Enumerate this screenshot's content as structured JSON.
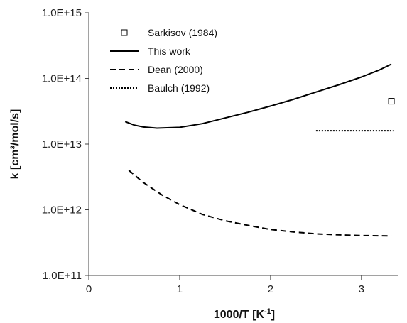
{
  "chart_data": {
    "type": "line",
    "xlabel": "1000/T [K",
    "xlabel_sup": "-1",
    "xlabel_suffix": "]",
    "ylabel": "k [cm³/mol/s]",
    "xlim": [
      0,
      3.4
    ],
    "ylim": [
      100000000000.0,
      1000000000000000.0
    ],
    "yscale": "log",
    "x_ticks": [
      {
        "value": 0,
        "label": "0"
      },
      {
        "value": 1,
        "label": "1"
      },
      {
        "value": 2,
        "label": "2"
      },
      {
        "value": 3,
        "label": "3"
      }
    ],
    "y_ticks": [
      {
        "value": 100000000000.0,
        "label": "1.0E+11"
      },
      {
        "value": 1000000000000.0,
        "label": "1.0E+12"
      },
      {
        "value": 10000000000000.0,
        "label": "1.0E+13"
      },
      {
        "value": 100000000000000.0,
        "label": "1.0E+14"
      },
      {
        "value": 1000000000000000.0,
        "label": "1.0E+15"
      }
    ],
    "legend_position": "top-left",
    "series": [
      {
        "name": "Sarkisov (1984)",
        "style": "square-marker",
        "color": "#000000",
        "points": [
          [
            3.33,
            45000000000000.0
          ]
        ]
      },
      {
        "name": "This work",
        "style": "solid",
        "color": "#000000",
        "points": [
          [
            0.4,
            22000000000000.0
          ],
          [
            0.5,
            19500000000000.0
          ],
          [
            0.6,
            18200000000000.0
          ],
          [
            0.75,
            17500000000000.0
          ],
          [
            1.0,
            18000000000000.0
          ],
          [
            1.25,
            20500000000000.0
          ],
          [
            1.5,
            25000000000000.0
          ],
          [
            1.75,
            30500000000000.0
          ],
          [
            2.0,
            38000000000000.0
          ],
          [
            2.25,
            48000000000000.0
          ],
          [
            2.5,
            62000000000000.0
          ],
          [
            2.75,
            80000000000000.0
          ],
          [
            3.0,
            105000000000000.0
          ],
          [
            3.2,
            135000000000000.0
          ],
          [
            3.33,
            165000000000000.0
          ]
        ]
      },
      {
        "name": "Dean (2000)",
        "style": "dashed",
        "color": "#000000",
        "points": [
          [
            0.44,
            4000000000000.0
          ],
          [
            0.6,
            2600000000000.0
          ],
          [
            0.8,
            1700000000000.0
          ],
          [
            1.0,
            1200000000000.0
          ],
          [
            1.25,
            850000000000.0
          ],
          [
            1.5,
            680000000000.0
          ],
          [
            1.75,
            580000000000.0
          ],
          [
            2.0,
            500000000000.0
          ],
          [
            2.25,
            460000000000.0
          ],
          [
            2.5,
            430000000000.0
          ],
          [
            2.75,
            415000000000.0
          ],
          [
            3.0,
            405000000000.0
          ],
          [
            3.33,
            400000000000.0
          ]
        ]
      },
      {
        "name": "Baulch (1992)",
        "style": "dotted",
        "color": "#000000",
        "points": [
          [
            2.5,
            16000000000000.0
          ],
          [
            3.35,
            16000000000000.0
          ]
        ]
      }
    ]
  }
}
